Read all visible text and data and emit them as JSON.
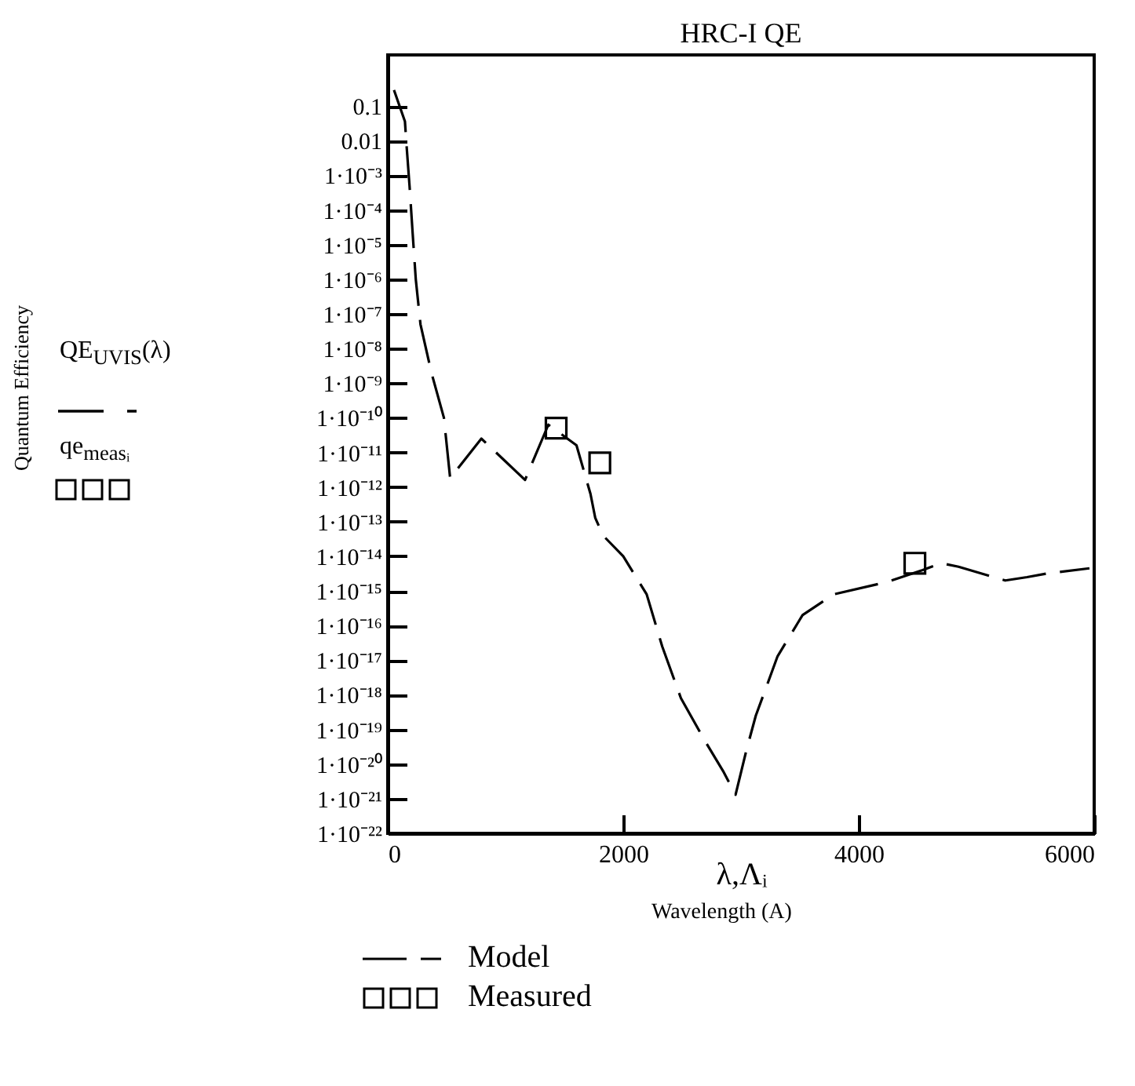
{
  "chart_data": {
    "type": "line",
    "title": "HRC-I QE",
    "xlabel": "λ,Λᵢ",
    "annotations": [
      "Wavelength (A)",
      "QE$_{UVIS}$(λ)",
      "qe$_{measᵢ}$",
      "Quantum Efficiency"
    ],
    "log": "y",
    "xlim": [
      0,
      6000
    ],
    "xticks": [
      0,
      2000,
      4000,
      6000
    ],
    "ylim": [
      1e-22,
      3
    ],
    "yticks": [
      0.1,
      0.01,
      {
        "value": 0.001,
        "label": "1·10⁻³"
      },
      {
        "value": 0.0001,
        "label": "1·10⁻⁴"
      },
      {
        "value": 1e-05,
        "label": "1·10⁻⁵"
      },
      {
        "value": 1e-06,
        "label": "1·10⁻⁶"
      },
      {
        "value": 1e-07,
        "label": "1·10⁻⁷"
      },
      {
        "value": 1e-08,
        "label": "1·10⁻⁸"
      },
      {
        "value": 1e-09,
        "label": "1·10⁻⁹"
      },
      {
        "value": 1e-10,
        "label": "1·10⁻¹⁰"
      },
      {
        "value": 1e-11,
        "label": "1·10⁻¹¹"
      },
      {
        "value": 1e-12,
        "label": "1·10⁻¹²"
      },
      {
        "value": 1e-13,
        "label": "1·10⁻¹³"
      },
      {
        "value": 1e-14,
        "label": "1·10⁻¹⁴"
      },
      {
        "value": 1e-15,
        "label": "1·10⁻¹⁵"
      },
      {
        "value": 1e-16,
        "label": "1·10⁻¹⁶"
      },
      {
        "value": 1e-17,
        "label": "1·10⁻¹⁷"
      },
      {
        "value": 1e-18,
        "label": "1·10⁻¹⁸"
      },
      {
        "value": 1e-19,
        "label": "1·10⁻¹⁹"
      },
      {
        "value": 1e-20,
        "label": "1·10⁻²⁰"
      },
      {
        "value": 1e-21,
        "label": "1·10⁻²¹"
      },
      {
        "value": 1e-22,
        "label": "1·10⁻²²"
      }
    ],
    "grid": false,
    "legend": "bottom left",
    "series": [
      {
        "name": "Model",
        "type": "line",
        "line_style": "dashed",
        "marker": "none",
        "color": "#000000",
        "x": [
          53,
          146,
          159,
          185,
          212,
          238,
          278,
          371,
          477,
          530,
          795,
          1166,
          1364,
          1603,
          1722,
          1762,
          1828,
          2000,
          2199,
          2331,
          2490,
          2689,
          2848,
          2954,
          3046,
          3126,
          3311,
          3523,
          3788,
          4238,
          4543,
          4702,
          4848,
          5245,
          5430,
          5603,
          5960
        ],
        "values": [
          0.29,
          0.036,
          0.0079,
          0.0005,
          2e-05,
          1e-06,
          5e-08,
          2e-09,
          1e-10,
          1.8e-12,
          2.5e-11,
          1.6e-12,
          6.3e-11,
          1.6e-11,
          6.3e-13,
          1.3e-13,
          4e-14,
          1e-14,
          8e-16,
          2.5e-17,
          8e-19,
          5e-20,
          6.3e-21,
          1.3e-21,
          2.5e-20,
          2.5e-19,
          1.3e-17,
          2e-16,
          8e-16,
          1.8e-15,
          4e-15,
          6.3e-15,
          5e-15,
          2e-15,
          2.5e-15,
          3.2e-15,
          4.5e-15
        ]
      },
      {
        "name": "Measured",
        "type": "scatter",
        "marker": "square",
        "color": "#000000",
        "x": [
          1430,
          1801,
          4477
        ],
        "values": [
          5e-11,
          5e-12,
          6.3e-15
        ]
      }
    ]
  }
}
